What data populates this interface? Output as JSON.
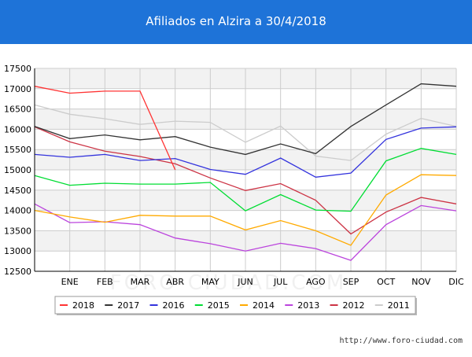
{
  "header": {
    "title": "Afiliados en Alzira a 30/4/2018"
  },
  "footer": {
    "url": "http://www.foro-ciudad.com"
  },
  "watermark": "FORO-CIUDAD.COM",
  "colors": {
    "header_bg": "#1e73d8",
    "grid": "#cccccc",
    "band": "#f2f2f2"
  },
  "chart_data": {
    "type": "line",
    "title": "Afiliados en Alzira a 30/4/2018",
    "xlabel": "",
    "ylabel": "",
    "categories": [
      "",
      "ENE",
      "FEB",
      "MAR",
      "ABR",
      "MAY",
      "JUN",
      "JUL",
      "AGO",
      "SEP",
      "OCT",
      "NOV",
      "DIC"
    ],
    "ylim": [
      12500,
      17500
    ],
    "yticks": [
      12500,
      13000,
      13500,
      14000,
      14500,
      15000,
      15500,
      16000,
      16500,
      17000,
      17500
    ],
    "grid": true,
    "legend_position": "bottom",
    "series": [
      {
        "name": "2018",
        "color": "#ff3333",
        "values": [
          17060,
          16890,
          16940,
          16940,
          15000,
          null,
          null,
          null,
          null,
          null,
          null,
          null,
          null
        ]
      },
      {
        "name": "2017",
        "color": "#333333",
        "values": [
          16070,
          15770,
          15860,
          15740,
          15820,
          15560,
          15380,
          15640,
          15400,
          16070,
          16600,
          17120,
          17060
        ]
      },
      {
        "name": "2016",
        "color": "#3333dd",
        "values": [
          15380,
          15310,
          15380,
          15230,
          15280,
          15010,
          14890,
          15290,
          14820,
          14920,
          15750,
          16030,
          16060
        ]
      },
      {
        "name": "2015",
        "color": "#00dd33",
        "values": [
          14860,
          14620,
          14670,
          14650,
          14650,
          14690,
          13990,
          14390,
          14010,
          13980,
          15220,
          15530,
          15380
        ]
      },
      {
        "name": "2014",
        "color": "#ffaa00",
        "values": [
          14000,
          13840,
          13710,
          13880,
          13860,
          13860,
          13520,
          13750,
          13500,
          13140,
          14380,
          14880,
          14860
        ]
      },
      {
        "name": "2013",
        "color": "#bb44dd",
        "values": [
          14160,
          13700,
          13720,
          13650,
          13320,
          13180,
          13000,
          13190,
          13060,
          12770,
          13650,
          14120,
          13990
        ]
      },
      {
        "name": "2012",
        "color": "#cc3344",
        "values": [
          16060,
          15690,
          15460,
          15330,
          15150,
          14800,
          14490,
          14660,
          14250,
          13420,
          13960,
          14320,
          14160
        ]
      },
      {
        "name": "2011",
        "color": "#cccccc",
        "values": [
          16600,
          16370,
          16260,
          16120,
          16200,
          16170,
          15680,
          16080,
          15340,
          15230,
          15880,
          16270,
          16070
        ]
      }
    ]
  }
}
